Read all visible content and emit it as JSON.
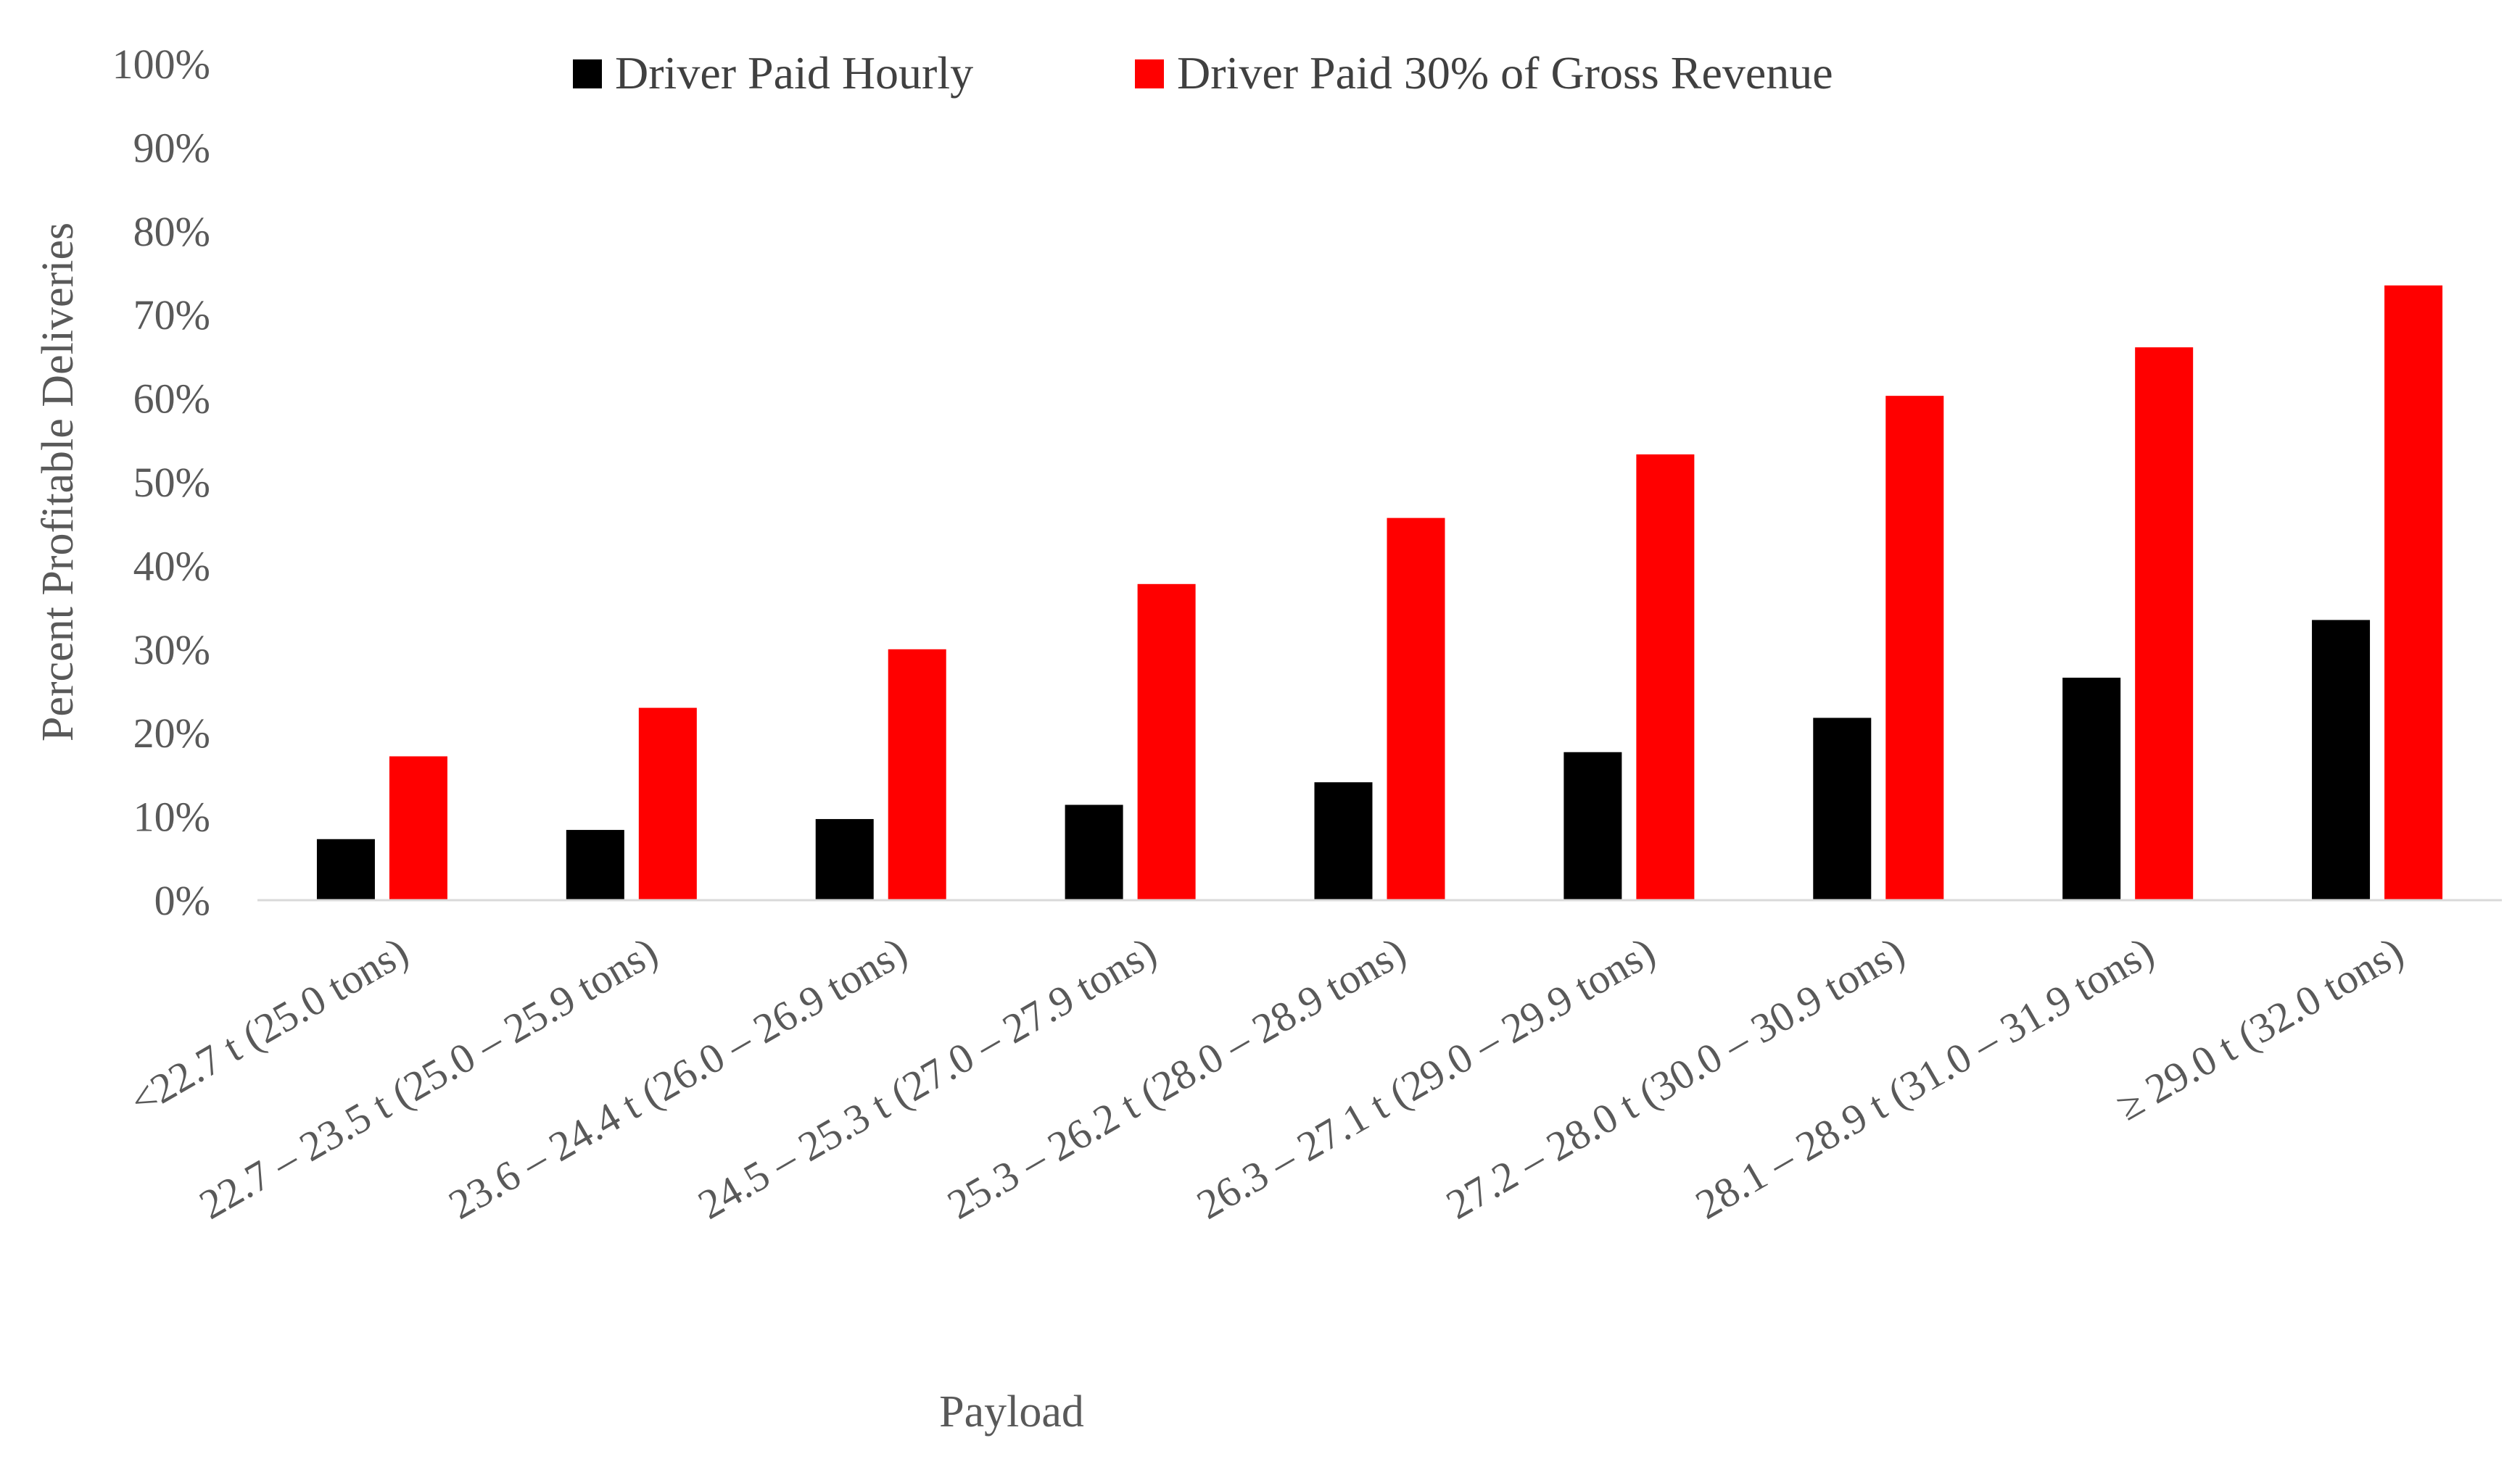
{
  "chart_data": {
    "type": "bar",
    "title": "",
    "xlabel": "Payload",
    "ylabel": "Percent Profitable Deliveries",
    "ylim": [
      0,
      100
    ],
    "y_ticks": [
      "0%",
      "10%",
      "20%",
      "30%",
      "40%",
      "50%",
      "60%",
      "70%",
      "80%",
      "90%",
      "100%"
    ],
    "legend_position": "top",
    "grid": false,
    "categories": [
      "<22.7 t (25.0 tons)",
      "22.7 – 23.5 t (25.0 – 25.9 tons)",
      "23.6 – 24.4 t (26.0 – 26.9 tons)",
      "24.5 – 25.3 t (27.0 – 27.9 tons)",
      "25.3 – 26.2 t (28.0 – 28.9 tons)",
      "26.3 – 27.1 t (29.0 – 29.9 tons)",
      "27.2 – 28.0 t (30.0 – 30.9 tons)",
      "28.1 – 28.9 t (31.0 – 31.9 tons)",
      "≥ 29.0 t (32.0 tons)"
    ],
    "series": [
      {
        "name": "Driver Paid Hourly",
        "color": "#000000",
        "values": [
          7.3,
          8.4,
          9.7,
          11.4,
          14.1,
          17.7,
          21.8,
          26.6,
          33.5
        ]
      },
      {
        "name": "Driver Paid 30% of Gross Revenue",
        "color": "#ff0000",
        "values": [
          17.2,
          23.0,
          30.0,
          37.8,
          45.7,
          53.3,
          60.3,
          66.1,
          73.5
        ]
      }
    ]
  }
}
